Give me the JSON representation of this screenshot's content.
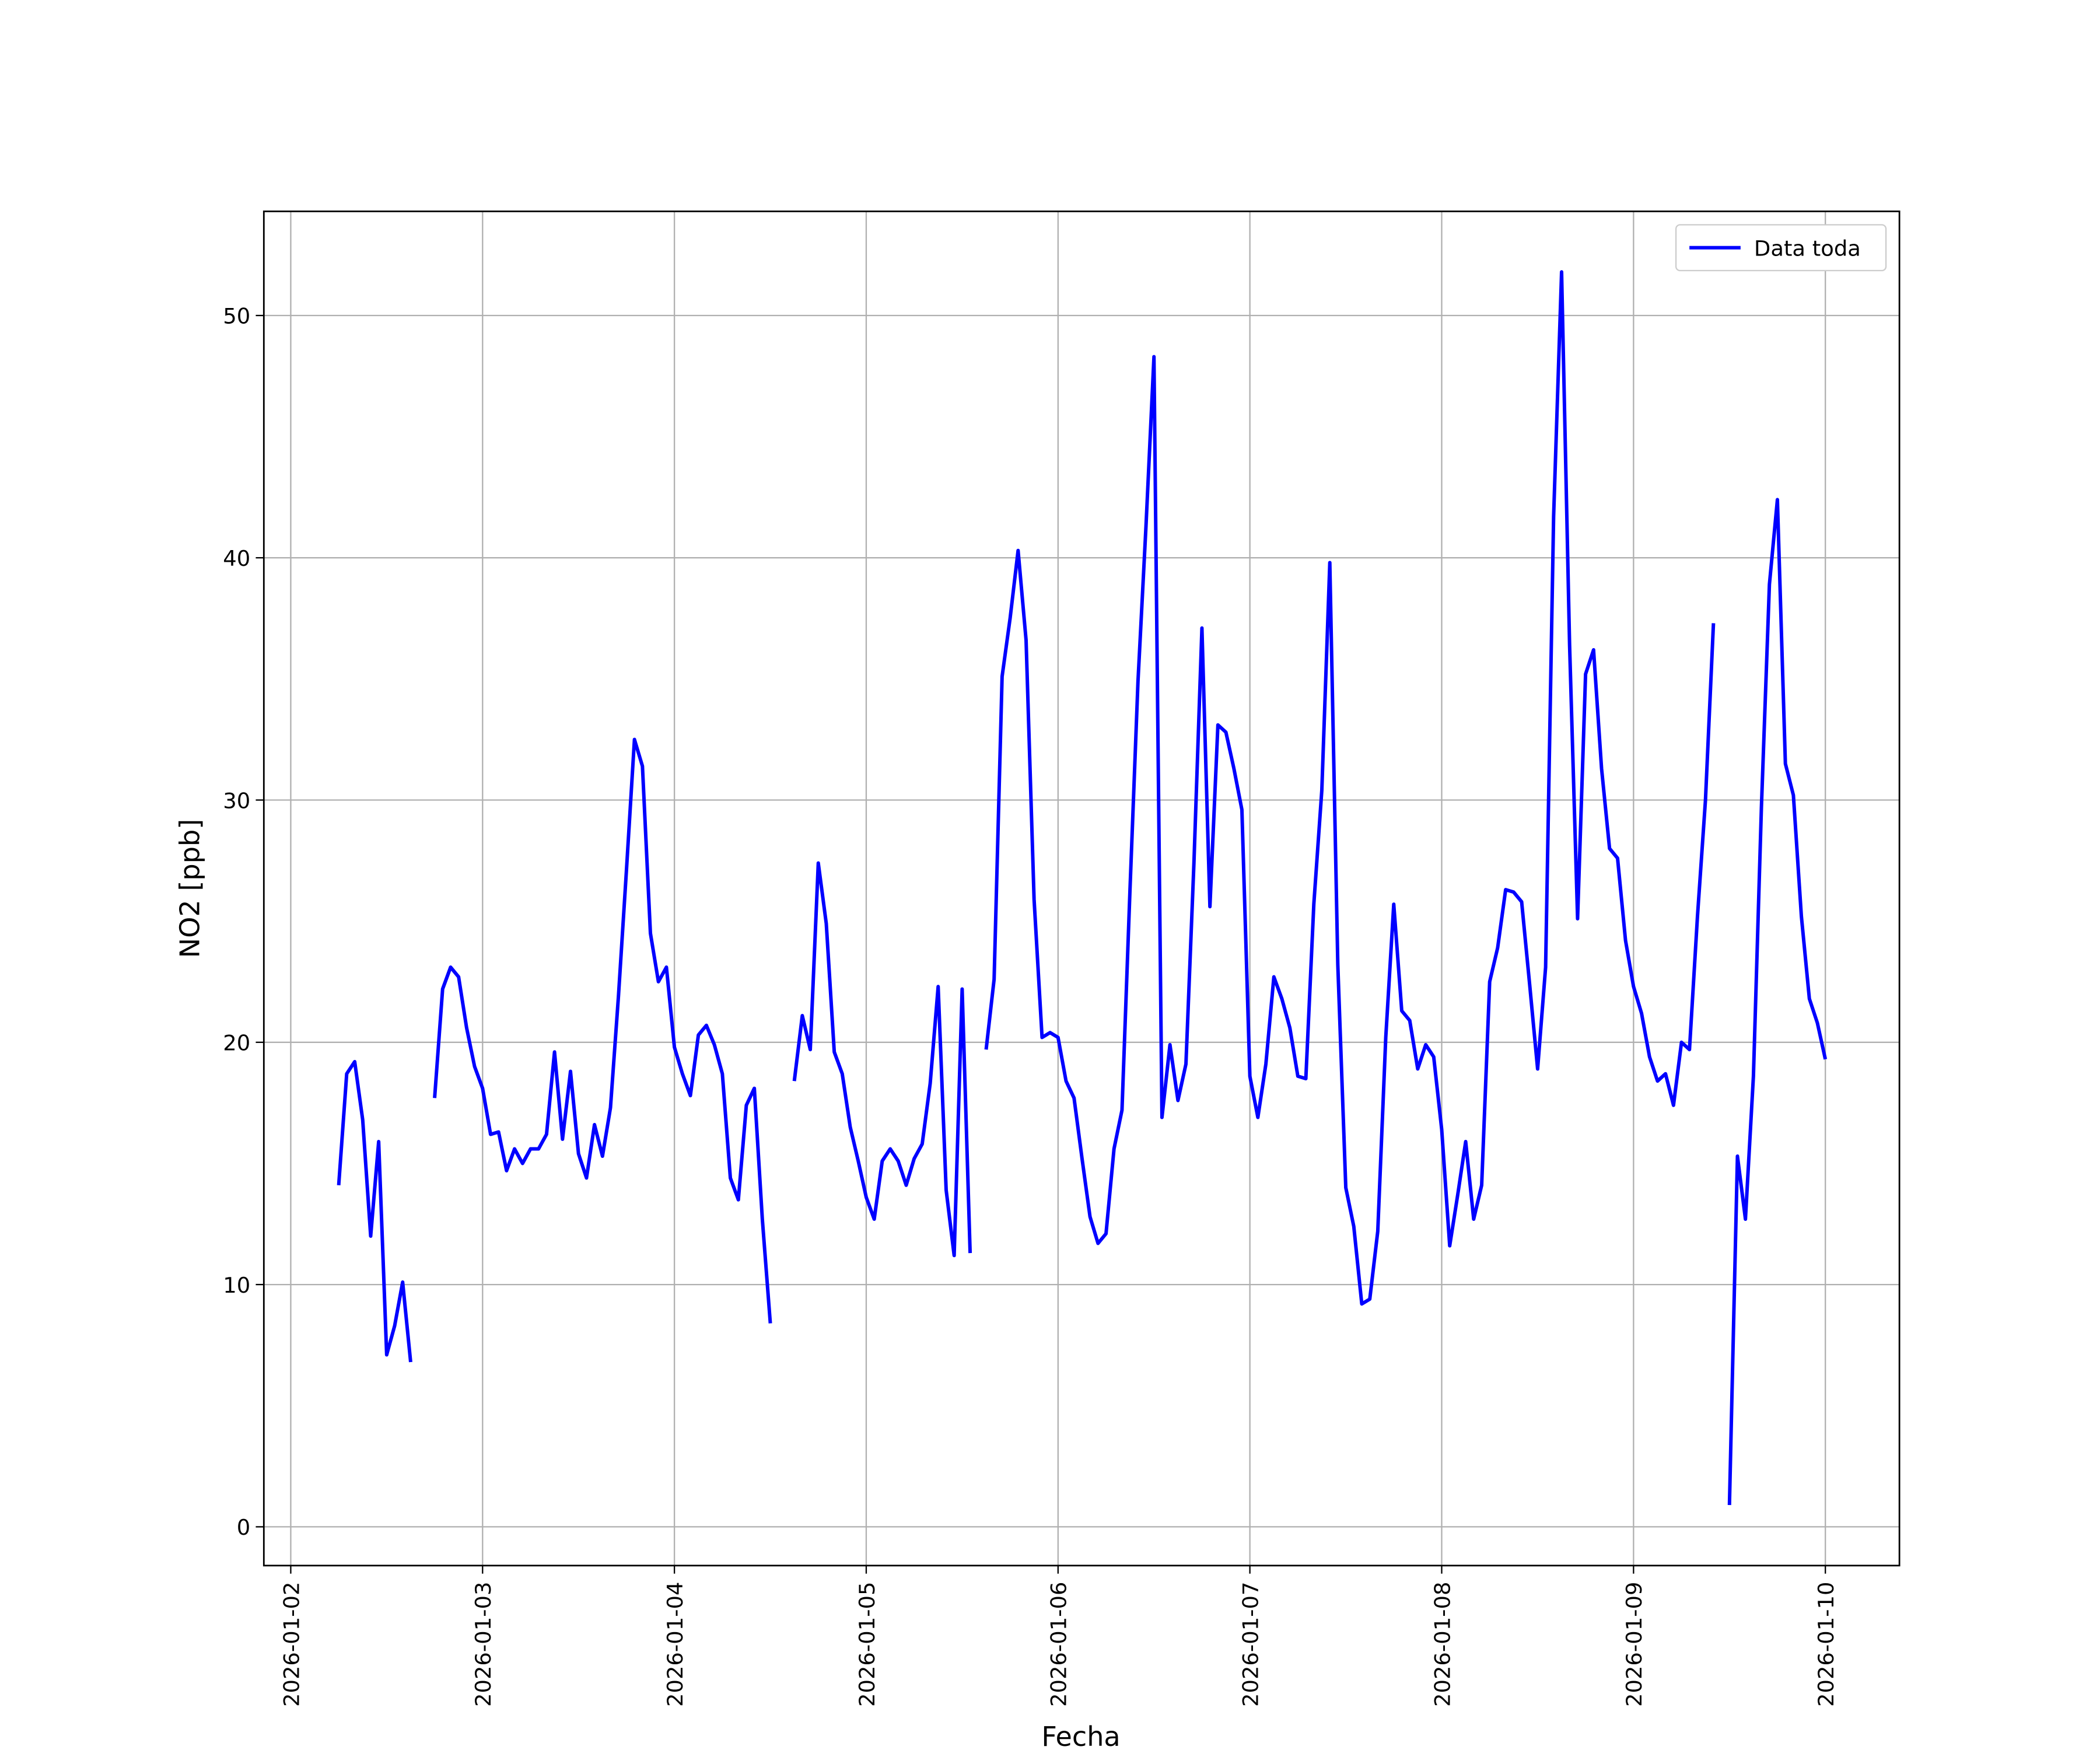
{
  "chart_data": {
    "type": "line",
    "xlabel": "Fecha",
    "ylabel": "NO2 [ppb]",
    "x": [
      "2026-01-02 06:00",
      "2026-01-02 07:00",
      "2026-01-02 08:00",
      "2026-01-02 09:00",
      "2026-01-02 10:00",
      "2026-01-02 11:00",
      "2026-01-02 12:00",
      "2026-01-02 13:00",
      "2026-01-02 14:00",
      "2026-01-02 15:00",
      "2026-01-02 16:00",
      "2026-01-02 17:00",
      "2026-01-02 18:00",
      "2026-01-02 19:00",
      "2026-01-02 20:00",
      "2026-01-02 21:00",
      "2026-01-02 22:00",
      "2026-01-02 23:00",
      "2026-01-03 00:00",
      "2026-01-03 01:00",
      "2026-01-03 02:00",
      "2026-01-03 03:00",
      "2026-01-03 04:00",
      "2026-01-03 05:00",
      "2026-01-03 06:00",
      "2026-01-03 07:00",
      "2026-01-03 08:00",
      "2026-01-03 09:00",
      "2026-01-03 10:00",
      "2026-01-03 11:00",
      "2026-01-03 12:00",
      "2026-01-03 13:00",
      "2026-01-03 14:00",
      "2026-01-03 15:00",
      "2026-01-03 16:00",
      "2026-01-03 17:00",
      "2026-01-03 18:00",
      "2026-01-03 19:00",
      "2026-01-03 20:00",
      "2026-01-03 21:00",
      "2026-01-03 22:00",
      "2026-01-03 23:00",
      "2026-01-04 00:00",
      "2026-01-04 01:00",
      "2026-01-04 02:00",
      "2026-01-04 03:00",
      "2026-01-04 04:00",
      "2026-01-04 05:00",
      "2026-01-04 06:00",
      "2026-01-04 07:00",
      "2026-01-04 08:00",
      "2026-01-04 09:00",
      "2026-01-04 10:00",
      "2026-01-04 11:00",
      "2026-01-04 12:00",
      "2026-01-04 13:00",
      "2026-01-04 14:00",
      "2026-01-04 15:00",
      "2026-01-04 16:00",
      "2026-01-04 17:00",
      "2026-01-04 18:00",
      "2026-01-04 19:00",
      "2026-01-04 20:00",
      "2026-01-04 21:00",
      "2026-01-04 22:00",
      "2026-01-04 23:00",
      "2026-01-05 00:00",
      "2026-01-05 01:00",
      "2026-01-05 02:00",
      "2026-01-05 03:00",
      "2026-01-05 04:00",
      "2026-01-05 05:00",
      "2026-01-05 06:00",
      "2026-01-05 07:00",
      "2026-01-05 08:00",
      "2026-01-05 09:00",
      "2026-01-05 10:00",
      "2026-01-05 11:00",
      "2026-01-05 12:00",
      "2026-01-05 13:00",
      "2026-01-05 14:00",
      "2026-01-05 15:00",
      "2026-01-05 16:00",
      "2026-01-05 17:00",
      "2026-01-05 18:00",
      "2026-01-05 19:00",
      "2026-01-05 20:00",
      "2026-01-05 21:00",
      "2026-01-05 22:00",
      "2026-01-05 23:00",
      "2026-01-06 00:00",
      "2026-01-06 01:00",
      "2026-01-06 02:00",
      "2026-01-06 03:00",
      "2026-01-06 04:00",
      "2026-01-06 05:00",
      "2026-01-06 06:00",
      "2026-01-06 07:00",
      "2026-01-06 08:00",
      "2026-01-06 09:00",
      "2026-01-06 10:00",
      "2026-01-06 11:00",
      "2026-01-06 12:00",
      "2026-01-06 13:00",
      "2026-01-06 14:00",
      "2026-01-06 15:00",
      "2026-01-06 16:00",
      "2026-01-06 17:00",
      "2026-01-06 18:00",
      "2026-01-06 19:00",
      "2026-01-06 20:00",
      "2026-01-06 21:00",
      "2026-01-06 22:00",
      "2026-01-06 23:00",
      "2026-01-07 00:00",
      "2026-01-07 01:00",
      "2026-01-07 02:00",
      "2026-01-07 03:00",
      "2026-01-07 04:00",
      "2026-01-07 05:00",
      "2026-01-07 06:00",
      "2026-01-07 07:00",
      "2026-01-07 08:00",
      "2026-01-07 09:00",
      "2026-01-07 10:00",
      "2026-01-07 11:00",
      "2026-01-07 12:00",
      "2026-01-07 13:00",
      "2026-01-07 14:00",
      "2026-01-07 15:00",
      "2026-01-07 16:00",
      "2026-01-07 17:00",
      "2026-01-07 18:00",
      "2026-01-07 19:00",
      "2026-01-07 20:00",
      "2026-01-07 21:00",
      "2026-01-07 22:00",
      "2026-01-07 23:00",
      "2026-01-08 00:00",
      "2026-01-08 01:00",
      "2026-01-08 02:00",
      "2026-01-08 03:00",
      "2026-01-08 04:00",
      "2026-01-08 05:00",
      "2026-01-08 06:00",
      "2026-01-08 07:00",
      "2026-01-08 08:00",
      "2026-01-08 09:00",
      "2026-01-08 10:00",
      "2026-01-08 11:00",
      "2026-01-08 12:00",
      "2026-01-08 13:00",
      "2026-01-08 14:00",
      "2026-01-08 15:00",
      "2026-01-08 16:00",
      "2026-01-08 17:00",
      "2026-01-08 18:00",
      "2026-01-08 19:00",
      "2026-01-08 20:00",
      "2026-01-08 21:00",
      "2026-01-08 22:00",
      "2026-01-08 23:00",
      "2026-01-09 00:00",
      "2026-01-09 01:00",
      "2026-01-09 02:00",
      "2026-01-09 03:00",
      "2026-01-09 04:00",
      "2026-01-09 05:00",
      "2026-01-09 06:00",
      "2026-01-09 07:00",
      "2026-01-09 08:00",
      "2026-01-09 09:00",
      "2026-01-09 10:00",
      "2026-01-09 11:00",
      "2026-01-09 12:00",
      "2026-01-09 13:00",
      "2026-01-09 14:00",
      "2026-01-09 15:00",
      "2026-01-09 16:00",
      "2026-01-09 17:00",
      "2026-01-09 18:00",
      "2026-01-09 19:00",
      "2026-01-09 20:00",
      "2026-01-09 21:00",
      "2026-01-09 22:00",
      "2026-01-09 23:00",
      "2026-01-10 00:00"
    ],
    "series": [
      {
        "name": "Data toda",
        "color": "#0000ff",
        "values": [
          14.1,
          18.7,
          19.2,
          16.8,
          12.0,
          15.9,
          7.1,
          8.3,
          10.1,
          6.8,
          null,
          null,
          17.7,
          22.2,
          23.1,
          22.7,
          20.6,
          19.0,
          18.1,
          16.2,
          16.3,
          14.7,
          15.6,
          15.0,
          15.6,
          15.6,
          16.2,
          19.6,
          16.0,
          18.8,
          15.4,
          14.4,
          16.6,
          15.3,
          17.3,
          21.9,
          27.1,
          32.5,
          31.4,
          24.5,
          22.5,
          23.1,
          19.8,
          18.7,
          17.8,
          20.3,
          20.7,
          19.9,
          18.7,
          14.4,
          13.5,
          17.4,
          18.1,
          12.7,
          8.4,
          null,
          null,
          18.4,
          21.1,
          19.7,
          27.4,
          24.9,
          19.6,
          18.7,
          16.5,
          15.1,
          13.6,
          12.7,
          15.1,
          15.6,
          15.1,
          14.1,
          15.2,
          15.8,
          18.3,
          22.3,
          13.9,
          11.2,
          22.2,
          11.3,
          null,
          19.7,
          22.6,
          35.1,
          37.5,
          40.3,
          36.6,
          25.9,
          20.2,
          20.4,
          20.2,
          18.4,
          17.7,
          15.2,
          12.8,
          11.7,
          12.1,
          15.6,
          17.2,
          26.3,
          34.9,
          41.3,
          48.3,
          16.9,
          19.9,
          17.6,
          19.1,
          27.4,
          37.1,
          25.6,
          33.1,
          32.8,
          31.3,
          29.6,
          18.6,
          16.9,
          19.1,
          22.7,
          21.8,
          20.6,
          18.6,
          18.5,
          25.7,
          30.4,
          39.8,
          23.2,
          14.0,
          12.4,
          9.2,
          9.4,
          12.2,
          20.2,
          25.7,
          21.3,
          20.9,
          18.9,
          19.9,
          19.4,
          16.4,
          11.6,
          13.7,
          15.9,
          12.7,
          14.1,
          22.5,
          23.9,
          26.3,
          26.2,
          25.8,
          22.4,
          18.9,
          23.1,
          41.7,
          51.8,
          36.4,
          25.1,
          35.2,
          36.2,
          31.3,
          28.0,
          27.6,
          24.2,
          22.3,
          21.2,
          19.4,
          18.4,
          18.7,
          17.4,
          20.0,
          19.7,
          25.2,
          30.0,
          37.3,
          null,
          0.9,
          15.3,
          12.7,
          18.6,
          29.7,
          38.9,
          42.4,
          31.5,
          30.2,
          25.2,
          21.8,
          20.8,
          19.3
        ]
      }
    ],
    "xlim": [
      "2026-01-01 20:38",
      "2026-01-10 09:16"
    ],
    "xticks": [
      "2026-01-02",
      "2026-01-03",
      "2026-01-04",
      "2026-01-05",
      "2026-01-06",
      "2026-01-07",
      "2026-01-08",
      "2026-01-09",
      "2026-01-10"
    ],
    "ylim": [
      -1.6,
      54.3
    ],
    "yticks": [
      0,
      10,
      20,
      30,
      40,
      50
    ],
    "grid": true,
    "legend": "upper right"
  }
}
